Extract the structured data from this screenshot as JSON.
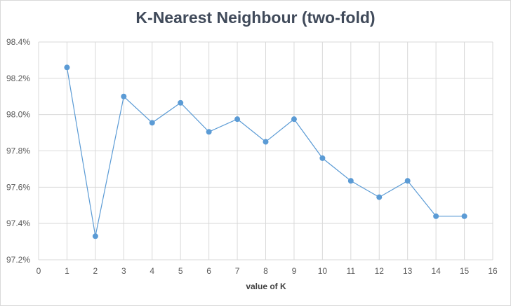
{
  "chart_data": {
    "type": "scatter",
    "title": "K-Nearest Neighbour (two-fold)",
    "xlabel": "value of K",
    "ylabel": "",
    "xlim": [
      0,
      16
    ],
    "ylim": [
      97.2,
      98.4
    ],
    "x_ticks": [
      0,
      1,
      2,
      3,
      4,
      5,
      6,
      7,
      8,
      9,
      10,
      11,
      12,
      13,
      14,
      15,
      16
    ],
    "y_ticks": [
      97.2,
      97.4,
      97.6,
      97.8,
      98.0,
      98.2,
      98.4
    ],
    "y_tick_labels": [
      "97.2%",
      "97.4%",
      "97.6%",
      "97.8%",
      "98.0%",
      "98.2%",
      "98.4%"
    ],
    "grid": true,
    "legend": "none",
    "line_color": "#5b9bd5",
    "series": [
      {
        "x": [
          1,
          2,
          3,
          4,
          5,
          6,
          7,
          8,
          9,
          10,
          11,
          12,
          13,
          14,
          15
        ],
        "y": [
          98.26,
          97.33,
          98.1,
          97.955,
          98.065,
          97.905,
          97.975,
          97.85,
          97.975,
          97.76,
          97.635,
          97.545,
          97.635,
          97.44,
          97.44
        ]
      }
    ]
  }
}
